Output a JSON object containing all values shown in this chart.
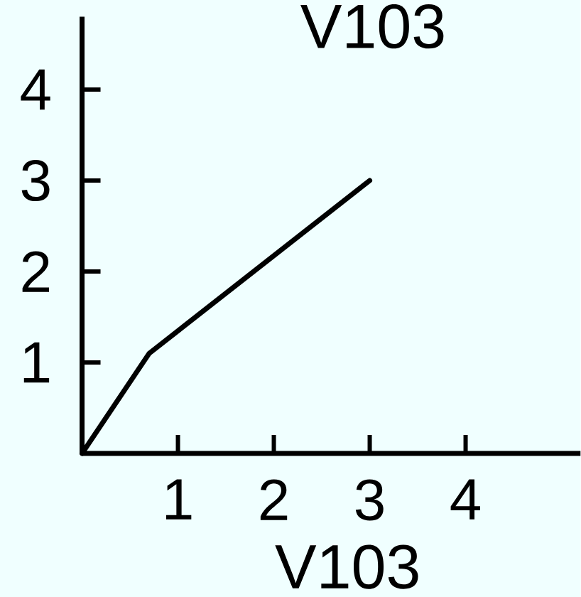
{
  "chart_data": {
    "type": "line",
    "ylabel": "V103",
    "xlabel": "V103",
    "x": [
      0,
      0.7,
      3
    ],
    "values": [
      0,
      1.1,
      3
    ],
    "color": "#000000",
    "xlim": [
      0,
      5.2
    ],
    "ylim": [
      0,
      4.8
    ],
    "xticks": [
      1,
      2,
      3,
      4
    ],
    "yticks": [
      1,
      2,
      3,
      4
    ],
    "marker": "none",
    "line_style": "solid"
  }
}
